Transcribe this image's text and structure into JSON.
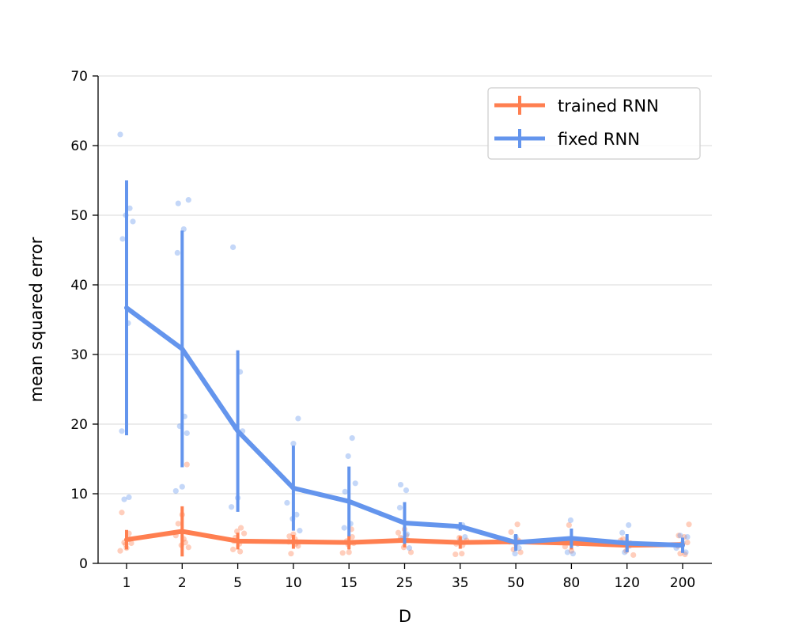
{
  "chart_data": {
    "type": "line",
    "xlabel": "D",
    "ylabel": "mean squared error",
    "categories": [
      "1",
      "2",
      "5",
      "10",
      "15",
      "25",
      "35",
      "50",
      "80",
      "120",
      "200"
    ],
    "ylim": [
      0,
      70
    ],
    "yticks": [
      0,
      10,
      20,
      30,
      40,
      50,
      60,
      70
    ],
    "grid": "horizontal",
    "legend_position": "top-right",
    "error_bars": true,
    "series": [
      {
        "name": "trained RNN",
        "color": "#FF7F50",
        "mean": [
          3.4,
          4.6,
          3.2,
          3.1,
          3.0,
          3.3,
          3.0,
          3.1,
          2.9,
          2.6,
          2.7
        ],
        "err": [
          1.4,
          3.6,
          1.2,
          1.0,
          1.0,
          1.0,
          0.9,
          1.0,
          0.9,
          0.9,
          0.9
        ],
        "points": [
          [
            7.3,
            4.3,
            3.0,
            2.9,
            2.2,
            1.8,
            3.5,
            2.7
          ],
          [
            14.2,
            7.0,
            4.0,
            3.0,
            2.6,
            2.3,
            5.7,
            3.5
          ],
          [
            5.1,
            4.6,
            4.3,
            3.2,
            2.8,
            2.0,
            1.7,
            3.7
          ],
          [
            3.9,
            3.5,
            3.1,
            2.8,
            1.4,
            2.5,
            4.2
          ],
          [
            4.9,
            3.2,
            2.9,
            1.6,
            1.5,
            3.8,
            2.7
          ],
          [
            4.9,
            4.4,
            3.3,
            2.3,
            1.6,
            3.7,
            4.0
          ],
          [
            3.7,
            3.3,
            2.8,
            1.4,
            1.3,
            2.6
          ],
          [
            5.6,
            4.5,
            3.3,
            2.0,
            1.6,
            2.8
          ],
          [
            5.5,
            3.0,
            1.8,
            2.4,
            3.3
          ],
          [
            3.3,
            2.9,
            1.8,
            1.2,
            3.5
          ],
          [
            5.6,
            4.0,
            3.8,
            2.5,
            1.3,
            1.4,
            3.0
          ]
        ]
      },
      {
        "name": "fixed RNN",
        "color": "#6495ED",
        "mean": [
          36.7,
          30.8,
          19.0,
          10.8,
          8.9,
          5.8,
          5.3,
          3.0,
          3.6,
          2.9,
          2.6
        ],
        "err": [
          18.3,
          17.0,
          11.6,
          6.1,
          5.0,
          3.0,
          0.6,
          1.2,
          1.4,
          1.3,
          1.1
        ],
        "points": [
          [
            61.6,
            51.0,
            50.0,
            49.1,
            46.6,
            34.5,
            19.0,
            9.5,
            9.2
          ],
          [
            52.2,
            51.7,
            48.0,
            44.6,
            21.1,
            19.7,
            18.7,
            11.0,
            10.4
          ],
          [
            45.4,
            27.5,
            19.5,
            19.0,
            9.4,
            8.1
          ],
          [
            20.8,
            17.2,
            8.7,
            7.0,
            6.4,
            4.7
          ],
          [
            18.0,
            15.4,
            11.5,
            10.3,
            5.7,
            5.1
          ],
          [
            11.3,
            10.5,
            8.0,
            4.2,
            3.5,
            2.2
          ],
          [
            5.5,
            5.2,
            3.8,
            3.3
          ],
          [
            3.8,
            3.1,
            2.2,
            1.4
          ],
          [
            6.2,
            2.8,
            1.6,
            1.4
          ],
          [
            5.5,
            4.4,
            2.5,
            1.6
          ],
          [
            4.0,
            3.8,
            2.9,
            2.2,
            1.6
          ]
        ]
      }
    ]
  }
}
